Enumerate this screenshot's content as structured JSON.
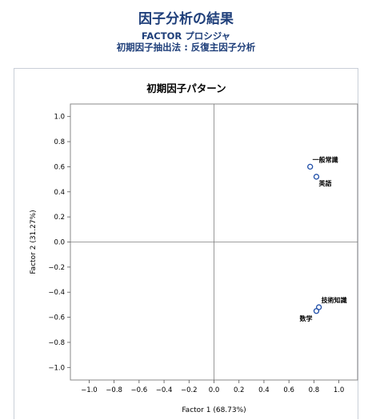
{
  "header": {
    "title": "因子分析の結果",
    "subtitle1": "FACTOR プロシジャ",
    "subtitle2": "初期因子抽出法 : 反復主因子分析"
  },
  "colors": {
    "header_text": "#1f3f7a",
    "marker": "#1f4ea8",
    "panel_border": "#c9cfd8",
    "reference_line": "#7f7f7f"
  },
  "chart_data": {
    "type": "scatter",
    "title": "初期因子パターン",
    "xlabel": "Factor 1 (68.73%)",
    "ylabel": "Factor 2 (31.27%)",
    "xlim": [
      -1.15,
      1.15
    ],
    "ylim": [
      -1.1,
      1.1
    ],
    "xticks": [
      -1.0,
      -0.8,
      -0.6,
      -0.4,
      -0.2,
      0.0,
      0.2,
      0.4,
      0.6,
      0.8,
      1.0
    ],
    "yticks": [
      -1.0,
      -0.8,
      -0.6,
      -0.4,
      -0.2,
      0.0,
      0.2,
      0.4,
      0.6,
      0.8,
      1.0
    ],
    "xtick_labels": [
      "−1.0",
      "−0.8",
      "−0.6",
      "−0.4",
      "−0.2",
      "0.0",
      "0.2",
      "0.4",
      "0.6",
      "0.8",
      "1.0"
    ],
    "ytick_labels": [
      "−1.0",
      "−0.8",
      "−0.6",
      "−0.4",
      "−0.2",
      "0.0",
      "0.2",
      "0.4",
      "0.6",
      "0.8",
      "1.0"
    ],
    "reference_lines": {
      "x": 0,
      "y": 0
    },
    "grid": false,
    "points": [
      {
        "x": 0.77,
        "y": 0.6,
        "label": "一般常識",
        "label_side": "upper-right"
      },
      {
        "x": 0.82,
        "y": 0.52,
        "label": "英語",
        "label_side": "lower-right"
      },
      {
        "x": 0.84,
        "y": -0.52,
        "label": "技術知識",
        "label_side": "upper-right"
      },
      {
        "x": 0.82,
        "y": -0.55,
        "label": "数学",
        "label_side": "lower-left"
      }
    ]
  }
}
